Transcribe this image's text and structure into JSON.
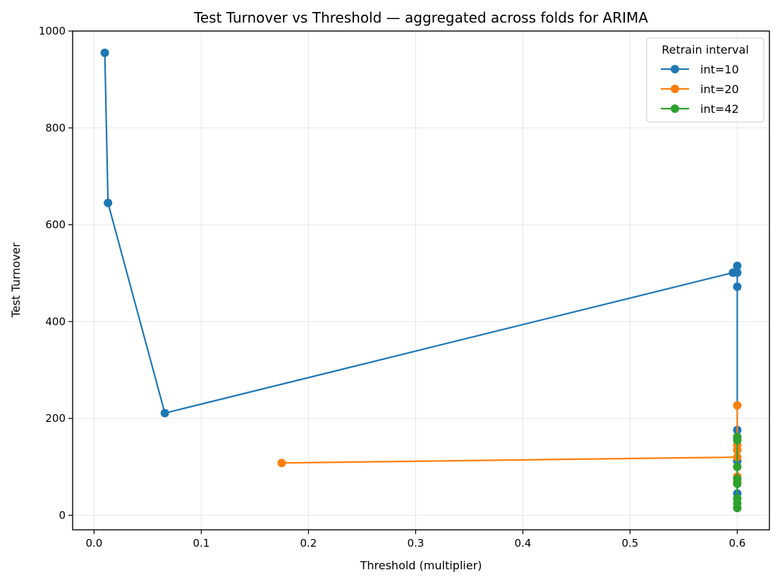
{
  "chart_data": {
    "type": "line",
    "title": "Test Turnover vs Threshold — aggregated across folds for ARIMA",
    "xlabel": "Threshold (multiplier)",
    "ylabel": "Test Turnover",
    "xlim": [
      -0.02,
      0.63
    ],
    "ylim": [
      -30,
      1000
    ],
    "xticks": [
      0.0,
      0.1,
      0.2,
      0.3,
      0.4,
      0.5,
      0.6
    ],
    "xtick_labels": [
      "0.0",
      "0.1",
      "0.2",
      "0.3",
      "0.4",
      "0.5",
      "0.6"
    ],
    "yticks": [
      0,
      200,
      400,
      600,
      800,
      1000
    ],
    "ytick_labels": [
      "0",
      "200",
      "400",
      "600",
      "800",
      "1000"
    ],
    "grid": true,
    "legend": {
      "title": "Retrain interval",
      "placement": "top-right"
    },
    "series": [
      {
        "name": "int=10",
        "color": "#1f77b4",
        "points": [
          [
            0.01,
            955
          ],
          [
            0.013,
            645
          ],
          [
            0.066,
            211
          ],
          [
            0.596,
            501
          ],
          [
            0.6,
            515
          ],
          [
            0.6,
            501
          ],
          [
            0.6,
            472
          ],
          [
            0.6,
            176
          ],
          [
            0.6,
            135
          ],
          [
            0.6,
            112
          ],
          [
            0.6,
            45
          ]
        ]
      },
      {
        "name": "int=20",
        "color": "#ff7f0e",
        "points": [
          [
            0.175,
            108
          ],
          [
            0.6,
            120
          ],
          [
            0.6,
            227
          ],
          [
            0.6,
            145
          ],
          [
            0.6,
            135
          ],
          [
            0.6,
            80
          ],
          [
            0.6,
            70
          ]
        ]
      },
      {
        "name": "int=42",
        "color": "#2ca02c",
        "points": [
          [
            0.6,
            162
          ],
          [
            0.6,
            155
          ],
          [
            0.6,
            100
          ],
          [
            0.6,
            75
          ],
          [
            0.6,
            65
          ],
          [
            0.6,
            35
          ],
          [
            0.6,
            25
          ],
          [
            0.6,
            15
          ]
        ]
      }
    ]
  }
}
